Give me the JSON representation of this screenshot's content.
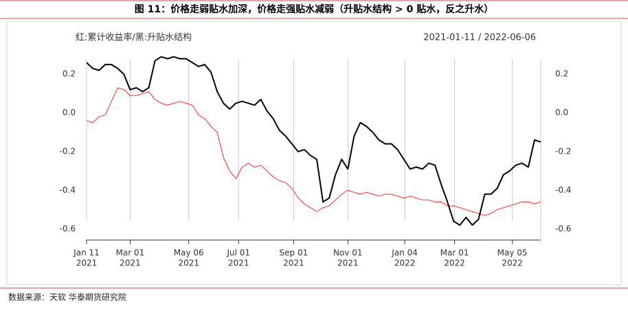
{
  "chart_data": {
    "type": "line",
    "title": "图 11：价格走弱贴水加深，价格走强贴水减弱（升贴水结构 > 0 贴水，反之升水）",
    "subtitle": "红:累计收益率/黑:升贴水结构",
    "date_range": "2021-01-11 / 2022-06-06",
    "source": "数据来源：天软 华泰期货研究院",
    "x": [
      "2021-01-11",
      "2021-01-18",
      "2021-01-25",
      "2021-02-01",
      "2021-02-08",
      "2021-02-15",
      "2021-02-22",
      "2021-03-01",
      "2021-03-08",
      "2021-03-15",
      "2021-03-22",
      "2021-03-29",
      "2021-04-05",
      "2021-04-12",
      "2021-04-19",
      "2021-04-26",
      "2021-05-03",
      "2021-05-10",
      "2021-05-17",
      "2021-05-24",
      "2021-05-31",
      "2021-06-07",
      "2021-06-14",
      "2021-06-21",
      "2021-06-28",
      "2021-07-05",
      "2021-07-12",
      "2021-07-19",
      "2021-07-26",
      "2021-08-02",
      "2021-08-09",
      "2021-08-16",
      "2021-08-23",
      "2021-08-30",
      "2021-09-06",
      "2021-09-13",
      "2021-09-20",
      "2021-09-27",
      "2021-10-04",
      "2021-10-11",
      "2021-10-18",
      "2021-10-25",
      "2021-11-01",
      "2021-11-08",
      "2021-11-15",
      "2021-11-22",
      "2021-11-29",
      "2021-12-06",
      "2021-12-13",
      "2021-12-20",
      "2021-12-27",
      "2022-01-03",
      "2022-01-10",
      "2022-01-17",
      "2022-01-24",
      "2022-01-31",
      "2022-02-07",
      "2022-02-14",
      "2022-02-21",
      "2022-02-28",
      "2022-03-07",
      "2022-03-14",
      "2022-03-21",
      "2022-03-28",
      "2022-04-04",
      "2022-04-11",
      "2022-04-18",
      "2022-04-25",
      "2022-05-02",
      "2022-05-09",
      "2022-05-16",
      "2022-05-23",
      "2022-05-30",
      "2022-06-06"
    ],
    "series": [
      {
        "color": "#000000",
        "values": [
          0.26,
          0.23,
          0.22,
          0.25,
          0.25,
          0.23,
          0.2,
          0.12,
          0.13,
          0.11,
          0.13,
          0.27,
          0.29,
          0.28,
          0.29,
          0.28,
          0.28,
          0.26,
          0.24,
          0.25,
          0.21,
          0.11,
          0.05,
          0.02,
          0.05,
          0.06,
          0.05,
          0.04,
          0.07,
          0.01,
          -0.03,
          -0.09,
          -0.12,
          -0.16,
          -0.2,
          -0.19,
          -0.22,
          -0.24,
          -0.46,
          -0.44,
          -0.32,
          -0.24,
          -0.29,
          -0.12,
          -0.05,
          -0.07,
          -0.1,
          -0.14,
          -0.16,
          -0.16,
          -0.19,
          -0.24,
          -0.29,
          -0.28,
          -0.29,
          -0.26,
          -0.27,
          -0.37,
          -0.46,
          -0.56,
          -0.58,
          -0.54,
          -0.58,
          -0.55,
          -0.42,
          -0.42,
          -0.39,
          -0.32,
          -0.3,
          -0.27,
          -0.26,
          -0.28,
          -0.14,
          -0.15
        ]
      },
      {
        "color": "#ff2a2a",
        "values": [
          -0.04,
          -0.05,
          -0.02,
          -0.01,
          0.06,
          0.13,
          0.12,
          0.09,
          0.09,
          0.1,
          0.11,
          0.07,
          0.05,
          0.04,
          0.05,
          0.06,
          0.05,
          0.04,
          -0.01,
          -0.03,
          -0.07,
          -0.1,
          -0.23,
          -0.3,
          -0.34,
          -0.28,
          -0.26,
          -0.28,
          -0.27,
          -0.3,
          -0.33,
          -0.35,
          -0.36,
          -0.39,
          -0.44,
          -0.47,
          -0.49,
          -0.51,
          -0.49,
          -0.48,
          -0.45,
          -0.42,
          -0.4,
          -0.41,
          -0.42,
          -0.41,
          -0.42,
          -0.43,
          -0.42,
          -0.42,
          -0.43,
          -0.44,
          -0.43,
          -0.44,
          -0.45,
          -0.45,
          -0.46,
          -0.46,
          -0.48,
          -0.48,
          -0.49,
          -0.5,
          -0.51,
          -0.52,
          -0.53,
          -0.52,
          -0.5,
          -0.49,
          -0.48,
          -0.47,
          -0.46,
          -0.46,
          -0.47,
          -0.46
        ]
      }
    ],
    "xlim": [
      "2021-01-11",
      "2022-06-06"
    ],
    "xticks": [
      {
        "value": "2021-01-11",
        "label": [
          "Jan 11",
          "2021"
        ]
      },
      {
        "value": "2021-03-01",
        "label": [
          "Mar 01",
          "2021"
        ]
      },
      {
        "value": "2021-05-06",
        "label": [
          "May 06",
          "2021"
        ]
      },
      {
        "value": "2021-07-01",
        "label": [
          "Jul 01",
          "2021"
        ]
      },
      {
        "value": "2021-09-01",
        "label": [
          "Sep 01",
          "2021"
        ]
      },
      {
        "value": "2021-11-01",
        "label": [
          "Nov 01",
          "2021"
        ]
      },
      {
        "value": "2022-01-04",
        "label": [
          "Jan 04",
          "2022"
        ]
      },
      {
        "value": "2022-03-01",
        "label": [
          "Mar 01",
          "2022"
        ]
      },
      {
        "value": "2022-05-05",
        "label": [
          "May 05",
          "2022"
        ]
      }
    ],
    "ylim": [
      -0.65,
      0.3
    ],
    "yticks": [
      0.2,
      {
        "value": 0,
        "label": "0.0"
      },
      -0.2,
      -0.4,
      -0.6
    ],
    "y2lim": [
      -0.65,
      0.3
    ],
    "y2ticks": [
      0.2,
      {
        "value": 0,
        "label": "0.0"
      },
      -0.2,
      -0.4,
      -0.6
    ],
    "grid": true
  }
}
